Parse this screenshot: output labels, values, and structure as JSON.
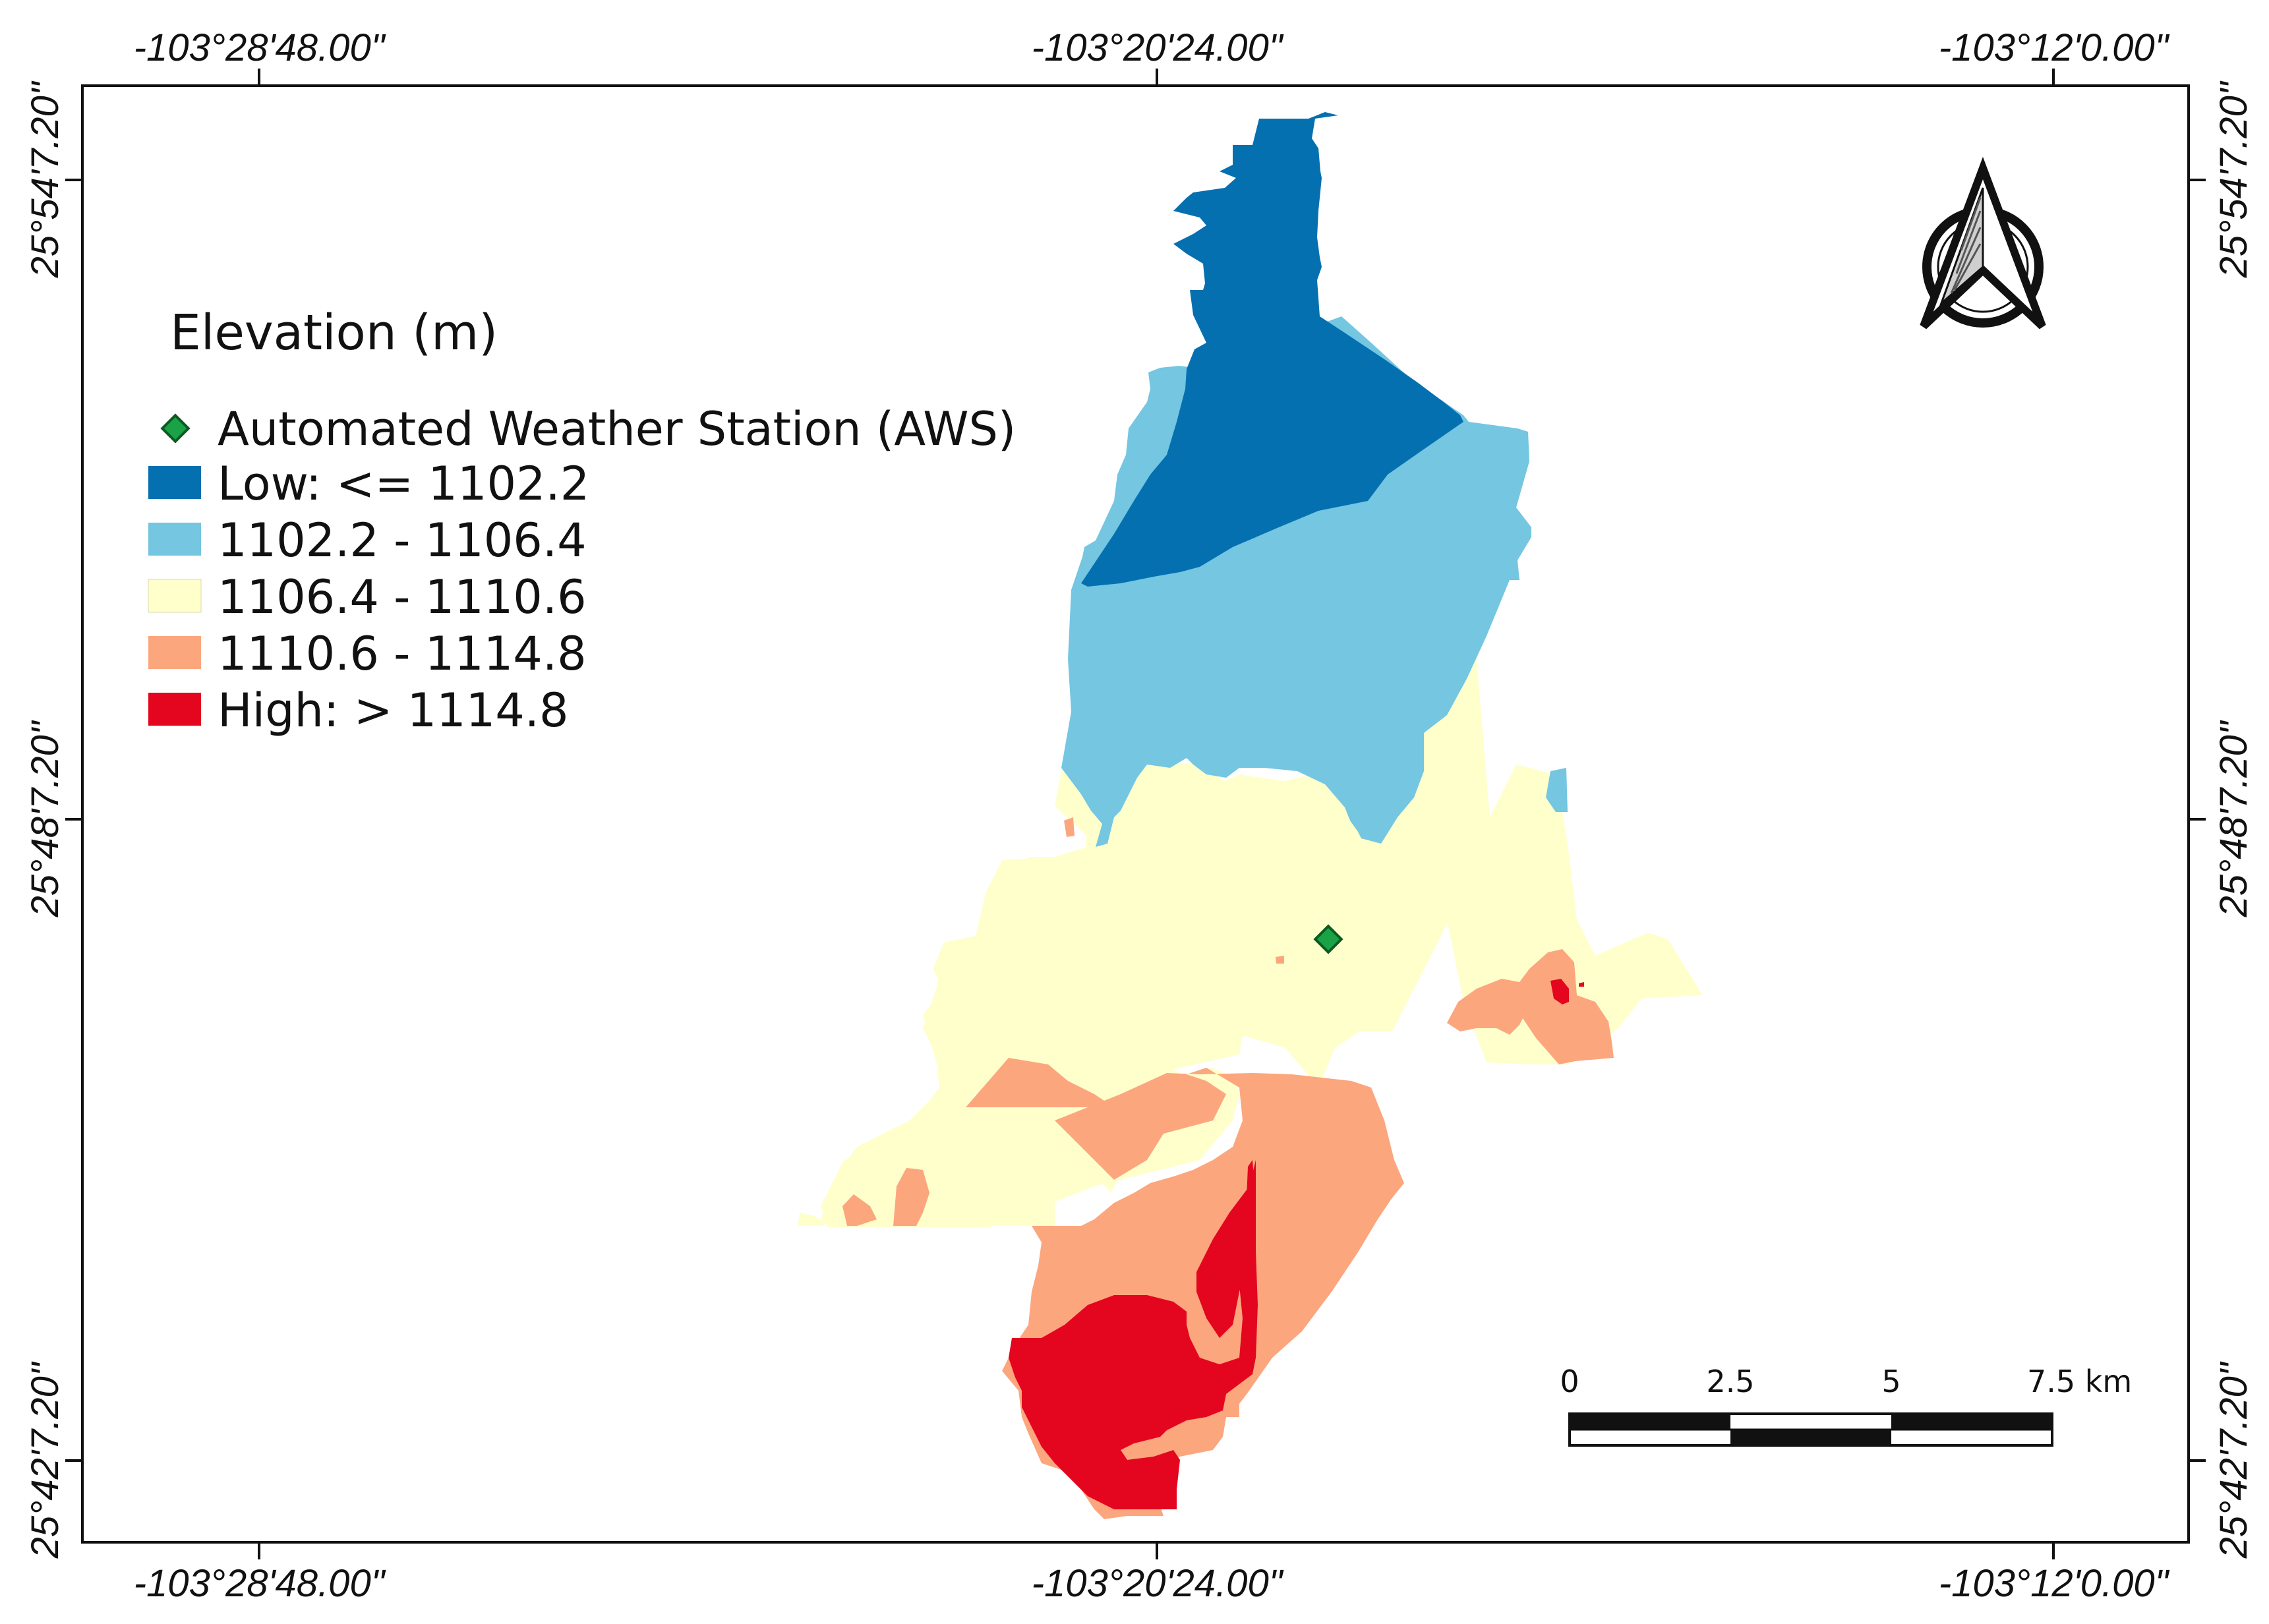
{
  "map": {
    "longitude_labels": [
      "-103°28'48.00\"",
      "-103°20'24.00\"",
      "-103°12'0.00\""
    ],
    "latitude_labels": [
      "25°54'7.20\"",
      "25°48'7.20\"",
      "25°42'7.20\""
    ],
    "legend": {
      "title": "Elevation (m)",
      "station": {
        "label": "Automated Weather Station (AWS)",
        "color": "#1aa346"
      },
      "classes": [
        {
          "label": "Low: <= 1102.2",
          "color": "#0570b0"
        },
        {
          "label": "1102.2 - 1106.4",
          "color": "#74c6e1"
        },
        {
          "label": "1106.4 - 1110.6",
          "color": "#ffffcc"
        },
        {
          "label": "1110.6 - 1114.8",
          "color": "#fca67e"
        },
        {
          "label": "High: > 1114.8",
          "color": "#e3061e"
        }
      ]
    },
    "scale_bar": {
      "ticks": [
        "0",
        "2.5",
        "5",
        "7.5 km"
      ]
    },
    "north_arrow": "north-arrow-icon"
  }
}
